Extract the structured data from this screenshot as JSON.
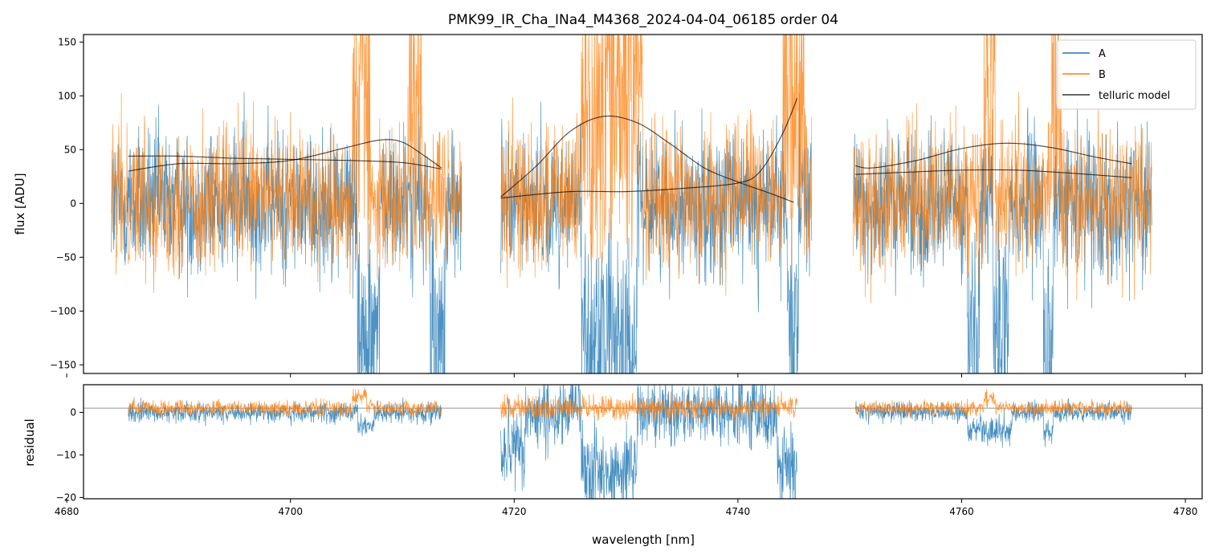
{
  "chart_data": [
    {
      "type": "line",
      "panel": "flux",
      "title": "PMK99_IR_Cha_INa4_M4368_2024-04-04_06185  order 04",
      "xlabel": "",
      "ylabel": "flux [ADU]",
      "xlim": [
        4681.5,
        4781.5
      ],
      "ylim": [
        -158,
        157
      ],
      "x_ticks": [
        4680,
        4700,
        4720,
        4740,
        4760,
        4780
      ],
      "y_ticks": [
        -150,
        -100,
        -50,
        0,
        50,
        100,
        150
      ],
      "y_tick_labels": [
        "−150",
        "−100",
        "−50",
        "0",
        "50",
        "100",
        "150"
      ],
      "legend_position": "top-right",
      "legend": [
        "A",
        "B",
        "telluric model"
      ],
      "colors": {
        "A": "#1f77b4",
        "B": "#ff7f0e",
        "telluric": "#000000"
      },
      "series": [
        {
          "name": "A",
          "kind": "noisy-spectrum",
          "segments": [
            [
              4684.0,
              4715.3
            ],
            [
              4718.8,
              4746.6
            ],
            [
              4750.3,
              4777.0
            ]
          ],
          "level": 0,
          "scatter": 55
        },
        {
          "name": "B",
          "kind": "noisy-spectrum",
          "segments": [
            [
              4684.0,
              4715.3
            ],
            [
              4718.8,
              4746.6
            ],
            [
              4750.3,
              4777.0
            ]
          ],
          "level": 5,
          "scatter": 55
        },
        {
          "name": "telluric model A (segment 1)",
          "x": [
            4685.5,
            4690,
            4695,
            4700,
            4705,
            4710,
            4713.5
          ],
          "y": [
            44,
            44,
            42,
            41,
            40,
            38,
            32
          ]
        },
        {
          "name": "telluric model B (segment 1)",
          "x": [
            4685.5,
            4690,
            4695,
            4700,
            4705,
            4708,
            4710,
            4712,
            4713.5
          ],
          "y": [
            30,
            37,
            37,
            40,
            52,
            59,
            57,
            44,
            33
          ]
        },
        {
          "name": "telluric model A (segment 2)",
          "x": [
            4718.8,
            4722,
            4725,
            4728,
            4731,
            4734,
            4737,
            4740,
            4743,
            4745
          ],
          "y": [
            6,
            35,
            67,
            81,
            75,
            55,
            33,
            20,
            9,
            1
          ]
        },
        {
          "name": "telluric model B (segment 2)",
          "x": [
            4718.8,
            4725,
            4730,
            4735,
            4740,
            4742,
            4744,
            4745.3
          ],
          "y": [
            5,
            11,
            11,
            14,
            19,
            30,
            65,
            98
          ]
        },
        {
          "name": "telluric model A (segment 3)",
          "x": [
            4750.5,
            4755,
            4760,
            4765,
            4770,
            4775.2
          ],
          "y": [
            27,
            29,
            31,
            31,
            28,
            24
          ]
        },
        {
          "name": "telluric model B (segment 3)",
          "x": [
            4750.5,
            4752,
            4756,
            4760,
            4764,
            4768,
            4772,
            4775.2
          ],
          "y": [
            35,
            33,
            40,
            51,
            56,
            52,
            43,
            37
          ]
        }
      ]
    },
    {
      "type": "line",
      "panel": "residual",
      "xlabel": "wavelength [nm]",
      "ylabel": "residual",
      "xlim": [
        4681.5,
        4781.5
      ],
      "ylim": [
        -20.3,
        6.5
      ],
      "x_ticks": [
        4680,
        4700,
        4720,
        4740,
        4760,
        4780
      ],
      "y_ticks": [
        -20,
        -10,
        0
      ],
      "y_tick_labels": [
        "−20",
        "−10",
        "0"
      ],
      "reference_line": 1,
      "series": [
        {
          "name": "A",
          "kind": "noisy-residual",
          "segments": [
            [
              4685.5,
              4713.5
            ],
            [
              4718.8,
              4745.3
            ],
            [
              4750.5,
              4775.2
            ]
          ],
          "level": 0,
          "scatter": 2
        },
        {
          "name": "B",
          "kind": "noisy-residual",
          "segments": [
            [
              4685.5,
              4713.5
            ],
            [
              4718.8,
              4745.3
            ],
            [
              4750.5,
              4775.2
            ]
          ],
          "level": 1,
          "scatter": 1.5
        }
      ]
    }
  ]
}
